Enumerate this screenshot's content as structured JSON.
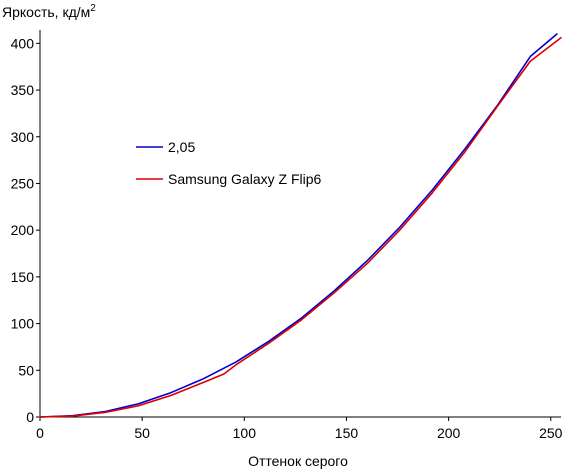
{
  "chart_data": {
    "type": "line",
    "ylabel": "Яркость, кд/м",
    "ylabel_sup": "2",
    "xlabel": "Оттенок серого",
    "xlim": [
      0,
      255
    ],
    "ylim": [
      0,
      410
    ],
    "x_ticks": [
      0,
      50,
      100,
      150,
      200,
      250
    ],
    "y_ticks": [
      0,
      50,
      100,
      150,
      200,
      250,
      300,
      350,
      400
    ],
    "grid": false,
    "legend_position": "center-left",
    "series": [
      {
        "name": "2,05",
        "color": "#0000cc",
        "x": [
          0,
          16,
          32,
          48,
          64,
          80,
          96,
          112,
          128,
          144,
          160,
          176,
          192,
          208,
          224,
          240,
          253
        ],
        "y": [
          0,
          1.4,
          5.9,
          14,
          26,
          41,
          59,
          81,
          106,
          135,
          167,
          203,
          243,
          287,
          334,
          386,
          410
        ]
      },
      {
        "name": "Samsung Galaxy Z Flip6",
        "color": "#dd0000",
        "x": [
          0,
          16,
          32,
          48,
          64,
          80,
          90,
          96,
          112,
          128,
          144,
          160,
          176,
          192,
          208,
          224,
          240,
          255
        ],
        "y": [
          0,
          1,
          5,
          12,
          23,
          37,
          46,
          56,
          79,
          104,
          133,
          164,
          200,
          240,
          284,
          333,
          381,
          406
        ]
      }
    ]
  }
}
